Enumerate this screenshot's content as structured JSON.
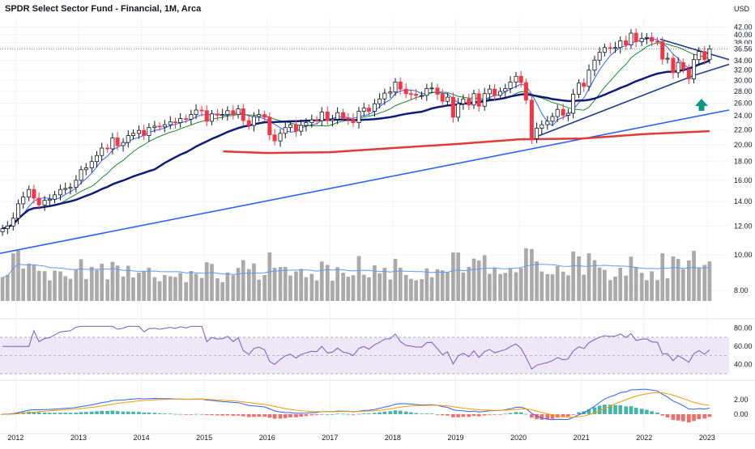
{
  "chart_data": {
    "type": "candlestick",
    "title": "SPDR Select Sector Fund - Financial, 1M, Arca",
    "currency": "USD",
    "last_price_label": "36.56",
    "price_axis": {
      "scale": "log",
      "range": [
        6.9,
        44.5
      ],
      "ticks": [
        "42.00",
        "40.00",
        "38.00",
        "34.00",
        "32.00",
        "30.00",
        "28.00",
        "26.00",
        "24.00",
        "22.00",
        "20.00",
        "18.00",
        "16.00",
        "14.00",
        "12.00",
        "10.00",
        "8.00"
      ],
      "tick_values": [
        42,
        40,
        38,
        34,
        32,
        30,
        28,
        26,
        24,
        22,
        20,
        18,
        16,
        14,
        12,
        10,
        8
      ]
    },
    "x_axis": {
      "ticks": [
        "2012",
        "2013",
        "2014",
        "2015",
        "2016",
        "2017",
        "2018",
        "2019",
        "2020",
        "2021",
        "2022",
        "2023"
      ],
      "tick_years": [
        2012,
        2013,
        2014,
        2015,
        2016,
        2017,
        2018,
        2019,
        2020,
        2021,
        2022,
        2023
      ],
      "range": [
        2011.75,
        2023.35
      ]
    },
    "candles_close": [
      [
        2011.79,
        11.8
      ],
      [
        2011.87,
        12.0
      ],
      [
        2011.96,
        12.6
      ],
      [
        2012.04,
        13.8
      ],
      [
        2012.12,
        14.4
      ],
      [
        2012.21,
        15.1
      ],
      [
        2012.29,
        14.3
      ],
      [
        2012.37,
        13.7
      ],
      [
        2012.46,
        14.1
      ],
      [
        2012.54,
        14.2
      ],
      [
        2012.62,
        14.6
      ],
      [
        2012.71,
        15.1
      ],
      [
        2012.79,
        15.2
      ],
      [
        2012.87,
        15.3
      ],
      [
        2012.96,
        16.0
      ],
      [
        2013.04,
        17.1
      ],
      [
        2013.12,
        17.3
      ],
      [
        2013.21,
        18.0
      ],
      [
        2013.29,
        18.7
      ],
      [
        2013.37,
        19.6
      ],
      [
        2013.46,
        19.5
      ],
      [
        2013.54,
        20.9
      ],
      [
        2013.62,
        19.9
      ],
      [
        2013.71,
        20.3
      ],
      [
        2013.79,
        21.2
      ],
      [
        2013.87,
        21.5
      ],
      [
        2013.96,
        21.9
      ],
      [
        2014.04,
        21.2
      ],
      [
        2014.12,
        22.3
      ],
      [
        2014.21,
        22.5
      ],
      [
        2014.29,
        22.4
      ],
      [
        2014.37,
        22.7
      ],
      [
        2014.46,
        23.1
      ],
      [
        2014.54,
        23.0
      ],
      [
        2014.62,
        23.6
      ],
      [
        2014.71,
        23.5
      ],
      [
        2014.79,
        24.2
      ],
      [
        2014.87,
        24.9
      ],
      [
        2014.96,
        24.8
      ],
      [
        2015.04,
        23.2
      ],
      [
        2015.12,
        24.3
      ],
      [
        2015.21,
        24.1
      ],
      [
        2015.29,
        24.2
      ],
      [
        2015.37,
        24.8
      ],
      [
        2015.46,
        24.2
      ],
      [
        2015.54,
        25.1
      ],
      [
        2015.62,
        23.3
      ],
      [
        2015.71,
        22.6
      ],
      [
        2015.79,
        23.9
      ],
      [
        2015.87,
        24.2
      ],
      [
        2015.96,
        23.8
      ],
      [
        2016.04,
        21.3
      ],
      [
        2016.12,
        20.5
      ],
      [
        2016.21,
        21.5
      ],
      [
        2016.29,
        22.3
      ],
      [
        2016.37,
        22.7
      ],
      [
        2016.46,
        21.8
      ],
      [
        2016.54,
        22.6
      ],
      [
        2016.62,
        23.0
      ],
      [
        2016.71,
        23.4
      ],
      [
        2016.79,
        23.3
      ],
      [
        2016.87,
        24.6
      ],
      [
        2016.96,
        23.3
      ],
      [
        2017.04,
        23.5
      ],
      [
        2017.12,
        24.5
      ],
      [
        2017.21,
        23.7
      ],
      [
        2017.29,
        23.5
      ],
      [
        2017.37,
        23.0
      ],
      [
        2017.46,
        24.7
      ],
      [
        2017.54,
        25.2
      ],
      [
        2017.62,
        24.7
      ],
      [
        2017.71,
        25.9
      ],
      [
        2017.79,
        26.7
      ],
      [
        2017.87,
        27.7
      ],
      [
        2017.96,
        27.9
      ],
      [
        2018.04,
        29.7
      ],
      [
        2018.12,
        28.4
      ],
      [
        2018.21,
        27.6
      ],
      [
        2018.29,
        27.5
      ],
      [
        2018.37,
        27.3
      ],
      [
        2018.46,
        27.3
      ],
      [
        2018.54,
        28.5
      ],
      [
        2018.62,
        28.6
      ],
      [
        2018.71,
        27.5
      ],
      [
        2018.79,
        26.3
      ],
      [
        2018.87,
        27.0
      ],
      [
        2018.96,
        23.8
      ],
      [
        2019.04,
        25.9
      ],
      [
        2019.12,
        26.7
      ],
      [
        2019.21,
        25.7
      ],
      [
        2019.29,
        27.6
      ],
      [
        2019.37,
        25.5
      ],
      [
        2019.46,
        27.6
      ],
      [
        2019.54,
        28.4
      ],
      [
        2019.62,
        27.3
      ],
      [
        2019.71,
        28.0
      ],
      [
        2019.79,
        28.5
      ],
      [
        2019.87,
        29.7
      ],
      [
        2019.96,
        30.8
      ],
      [
        2020.04,
        29.6
      ],
      [
        2020.12,
        26.5
      ],
      [
        2020.21,
        20.8
      ],
      [
        2020.29,
        22.2
      ],
      [
        2020.37,
        22.7
      ],
      [
        2020.46,
        23.2
      ],
      [
        2020.54,
        23.9
      ],
      [
        2020.62,
        25.0
      ],
      [
        2020.71,
        24.1
      ],
      [
        2020.79,
        24.4
      ],
      [
        2020.87,
        27.5
      ],
      [
        2020.96,
        29.5
      ],
      [
        2021.04,
        28.9
      ],
      [
        2021.12,
        32.0
      ],
      [
        2021.21,
        34.1
      ],
      [
        2021.29,
        35.8
      ],
      [
        2021.37,
        36.9
      ],
      [
        2021.46,
        36.7
      ],
      [
        2021.54,
        36.9
      ],
      [
        2021.62,
        38.5
      ],
      [
        2021.71,
        37.5
      ],
      [
        2021.79,
        40.4
      ],
      [
        2021.87,
        38.3
      ],
      [
        2021.96,
        39.1
      ],
      [
        2022.04,
        39.3
      ],
      [
        2022.12,
        38.4
      ],
      [
        2022.21,
        38.3
      ],
      [
        2022.29,
        34.3
      ],
      [
        2022.37,
        34.5
      ],
      [
        2022.46,
        31.5
      ],
      [
        2022.54,
        33.6
      ],
      [
        2022.62,
        32.2
      ],
      [
        2022.71,
        30.3
      ],
      [
        2022.79,
        34.2
      ],
      [
        2022.87,
        36.0
      ],
      [
        2022.96,
        34.2
      ],
      [
        2023.04,
        36.6
      ]
    ],
    "overlays": [
      {
        "type": "trendline",
        "color": "#2962ff",
        "points": [
          [
            2011.75,
            10.1
          ],
          [
            2023.35,
            24.9
          ]
        ]
      },
      {
        "type": "trendline",
        "color": "#1e3d8f",
        "points": [
          [
            2020.3,
            21.1
          ],
          [
            2022.8,
            31.0
          ],
          [
            2023.35,
            33.2
          ]
        ]
      },
      {
        "type": "trendline",
        "color": "#1e3d8f",
        "points": [
          [
            2022.25,
            38.9
          ],
          [
            2023.35,
            34.2
          ]
        ]
      }
    ],
    "volume_panel": {
      "axis_ticks": []
    },
    "rsi_panel": {
      "ticks": [
        "80.00",
        "60.00",
        "40.00"
      ],
      "tick_values": [
        80,
        60,
        40
      ],
      "range": [
        30,
        85
      ],
      "band": [
        30,
        70
      ]
    },
    "macd_panel": {
      "ticks": [
        "2.00",
        "0.00"
      ],
      "tick_values": [
        2,
        0
      ],
      "range": [
        -1.8,
        3.8
      ]
    },
    "colors": {
      "up": "#ffffff",
      "down": "#f23645",
      "wick": "#131722",
      "sma_fast": "#2962ff",
      "sma_mid": "#1b8a2e",
      "sma_slow": "#0d1c7a",
      "sma_long": "#e53935",
      "volume": "#9b9b9b",
      "rsi_line": "#7e57c2",
      "rsi_band": "#ede7f6",
      "macd": "#2962ff",
      "signal": "#ff9800",
      "hist_pos": "#26a69a",
      "hist_neg": "#ef5350",
      "arrow": "#089981",
      "axis_text": "#131722",
      "grid": "#f0f3fa"
    }
  }
}
